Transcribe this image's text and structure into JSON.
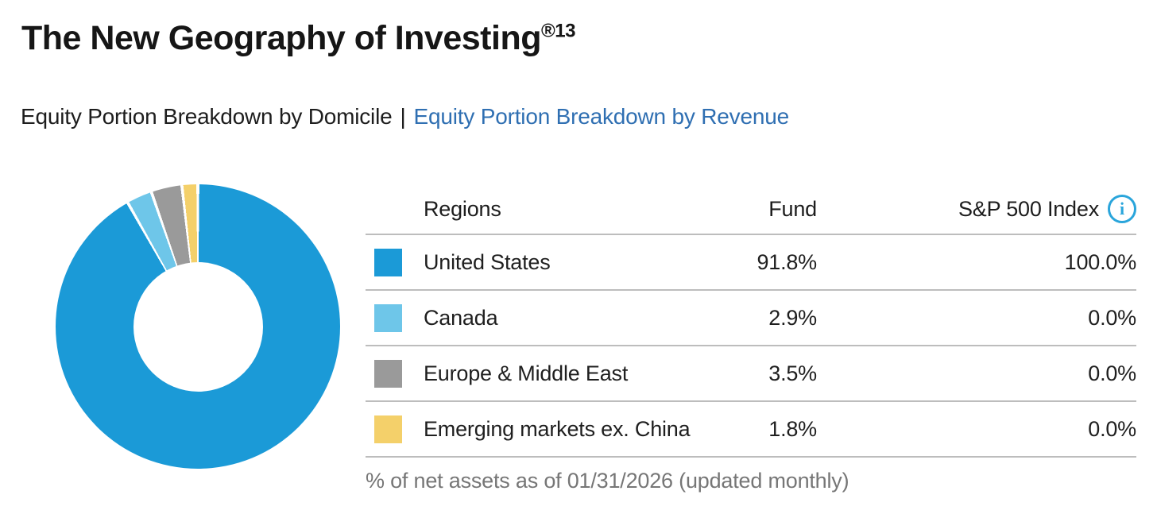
{
  "page": {
    "title": "The New Geography of Investing",
    "title_superscript": "®13",
    "subtitle_active": "Equity Portion Breakdown by Domicile",
    "subtitle_separator": "|",
    "subtitle_link": "Equity Portion Breakdown by Revenue"
  },
  "table": {
    "headers": {
      "regions": "Regions",
      "fund": "Fund",
      "index": "S&P 500 Index"
    },
    "rows": [
      {
        "region": "United States",
        "fund": "91.8%",
        "index": "100.0%",
        "color": "#1b9ad7"
      },
      {
        "region": "Canada",
        "fund": "2.9%",
        "index": "0.0%",
        "color": "#6ec6e9"
      },
      {
        "region": "Europe & Middle East",
        "fund": "3.5%",
        "index": "0.0%",
        "color": "#9a9a9a"
      },
      {
        "region": "Emerging markets ex. China",
        "fund": "1.8%",
        "index": "0.0%",
        "color": "#f4d06a"
      }
    ],
    "footnote": "% of net assets as of 01/31/2026 (updated monthly)"
  },
  "icons": {
    "info": "i"
  },
  "colors": {
    "accent_link": "#2f6fb2",
    "info_icon": "#2aa5db",
    "separator_line": "#bdbdbd",
    "footnote_text": "#767676"
  },
  "chart_data": {
    "type": "pie",
    "donut": true,
    "title": "Equity Portion Breakdown by Domicile",
    "categories": [
      "United States",
      "Canada",
      "Europe & Middle East",
      "Emerging markets ex. China"
    ],
    "series": [
      {
        "name": "Fund",
        "values": [
          91.8,
          2.9,
          3.5,
          1.8
        ]
      },
      {
        "name": "S&P 500 Index",
        "values": [
          100.0,
          0.0,
          0.0,
          0.0
        ]
      }
    ],
    "plotted_series": "Fund",
    "values": [
      91.8,
      2.9,
      3.5,
      1.8
    ],
    "colors": [
      "#1b9ad7",
      "#6ec6e9",
      "#9a9a9a",
      "#f4d06a"
    ],
    "start_angle_deg": 0,
    "direction": "clockwise",
    "inner_radius_ratio": 0.455,
    "segment_gap_deg": 1.2,
    "legend_position": "table-right",
    "footnote": "% of net assets as of 01/31/2026 (updated monthly)"
  }
}
